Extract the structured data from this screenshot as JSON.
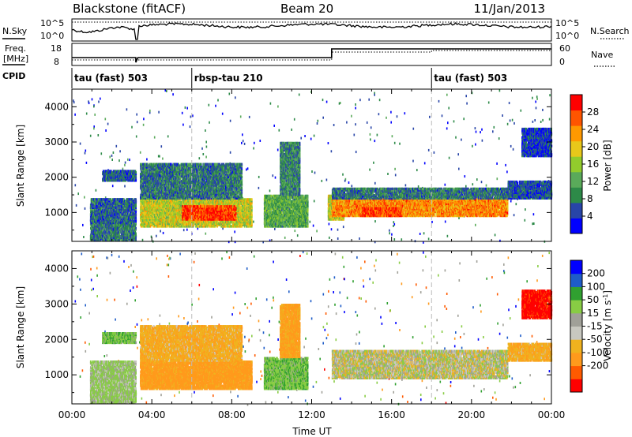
{
  "header": {
    "station": "Blackstone (fitACF)",
    "beam": "Beam 20",
    "date": "11/Jan/2013"
  },
  "strip_labels": {
    "nsky": "N.Sky",
    "freq_top": "Freq.",
    "freq_bottom": "[MHz]",
    "cpid": "CPID",
    "nsearch": "N.Search",
    "nave": "Nave"
  },
  "strip_ticks": {
    "noise_top": "10^5",
    "noise_bottom": "10^0",
    "freq_top": "18",
    "freq_bottom": "8",
    "nave_top": "60",
    "nave_bottom": "0"
  },
  "cpid_segments": [
    {
      "label": "tau (fast) 503",
      "start_hour": 0.0
    },
    {
      "label": "rbsp-tau 210",
      "start_hour": 6.0
    },
    {
      "label": "tau (fast) 503",
      "start_hour": 18.0
    }
  ],
  "colors": {
    "power": [
      "#0000ff",
      "#2845a8",
      "#2d8a48",
      "#5aaa5a",
      "#92cc2c",
      "#e8c81a",
      "#ff9900",
      "#ff5500",
      "#ff0000"
    ],
    "velocity": [
      "#ff0000",
      "#ff5a00",
      "#ff9a1c",
      "#f0b21e",
      "#c8c8c0",
      "#a0a098",
      "#88cc44",
      "#30a030",
      "#1e5cc8",
      "#0000ff"
    ]
  },
  "chart_data": [
    {
      "type": "heatmap",
      "panel": "power",
      "xlabel": "",
      "ylabel": "Slant Range [km]",
      "xlim": [
        0,
        24
      ],
      "ylim": [
        180,
        4500
      ],
      "y_ticks": [
        "1000",
        "2000",
        "3000",
        "4000"
      ],
      "colorbar": {
        "label": "Power [dB]",
        "range": [
          0,
          32
        ],
        "ticks": [
          "4",
          "8",
          "12",
          "16",
          "20",
          "24",
          "28"
        ]
      },
      "echo_regions": [
        {
          "t0": 0.9,
          "t1": 3.2,
          "r0": 200,
          "r1": 700,
          "value": 8
        },
        {
          "t0": 0.9,
          "t1": 3.2,
          "r0": 700,
          "r1": 1400,
          "value": 7
        },
        {
          "t0": 1.5,
          "t1": 3.2,
          "r0": 1900,
          "r1": 2200,
          "value": 6
        },
        {
          "t0": 3.4,
          "t1": 9.0,
          "r0": 600,
          "r1": 1400,
          "value": 18
        },
        {
          "t0": 5.5,
          "t1": 8.2,
          "r0": 800,
          "r1": 1200,
          "value": 28
        },
        {
          "t0": 3.4,
          "t1": 8.5,
          "r0": 1400,
          "r1": 2400,
          "value": 8
        },
        {
          "t0": 9.6,
          "t1": 11.8,
          "r0": 600,
          "r1": 1500,
          "value": 12
        },
        {
          "t0": 10.4,
          "t1": 11.4,
          "r0": 1500,
          "r1": 3000,
          "value": 9
        },
        {
          "t0": 12.8,
          "t1": 13.6,
          "r0": 800,
          "r1": 1500,
          "value": 18
        },
        {
          "t0": 13.0,
          "t1": 21.8,
          "r0": 900,
          "r1": 1400,
          "value": 24
        },
        {
          "t0": 14.5,
          "t1": 16.5,
          "r0": 900,
          "r1": 1150,
          "value": 28
        },
        {
          "t0": 13.0,
          "t1": 21.8,
          "r0": 1400,
          "r1": 1700,
          "value": 8
        },
        {
          "t0": 21.8,
          "t1": 24.0,
          "r0": 1400,
          "r1": 1900,
          "value": 6
        },
        {
          "t0": 22.5,
          "t1": 24.0,
          "r0": 2600,
          "r1": 3400,
          "value": 4
        }
      ]
    },
    {
      "type": "heatmap",
      "panel": "velocity",
      "xlabel": "Time UT",
      "ylabel": "Slant Range [km]",
      "xlim": [
        0,
        24
      ],
      "ylim": [
        180,
        4500
      ],
      "x_ticks": [
        "00:00",
        "04:00",
        "08:00",
        "12:00",
        "16:00",
        "20:00",
        "00:00"
      ],
      "y_ticks": [
        "1000",
        "2000",
        "3000",
        "4000"
      ],
      "colorbar": {
        "label": "Velocity [m s^-1]",
        "ticks": [
          "200",
          "100",
          "50",
          "15",
          "-15",
          "-50",
          "-100",
          "-200"
        ]
      },
      "echo_regions": [
        {
          "t0": 0.9,
          "t1": 3.2,
          "r0": 200,
          "r1": 1400,
          "value": 20
        },
        {
          "t0": 1.5,
          "t1": 3.2,
          "r0": 1900,
          "r1": 2200,
          "value": 40
        },
        {
          "t0": 3.4,
          "t1": 9.0,
          "r0": 600,
          "r1": 1400,
          "value": -70
        },
        {
          "t0": 3.4,
          "t1": 8.5,
          "r0": 1400,
          "r1": 2400,
          "value": -40
        },
        {
          "t0": 9.6,
          "t1": 11.8,
          "r0": 600,
          "r1": 1500,
          "value": 40
        },
        {
          "t0": 10.4,
          "t1": 11.4,
          "r0": 1500,
          "r1": 3000,
          "value": -60
        },
        {
          "t0": 13.0,
          "t1": 21.8,
          "r0": 900,
          "r1": 1700,
          "value": 0
        },
        {
          "t0": 21.8,
          "t1": 24.0,
          "r0": 1400,
          "r1": 1900,
          "value": -40
        },
        {
          "t0": 22.5,
          "t1": 24.0,
          "r0": 2600,
          "r1": 3400,
          "value": -220
        }
      ]
    }
  ]
}
